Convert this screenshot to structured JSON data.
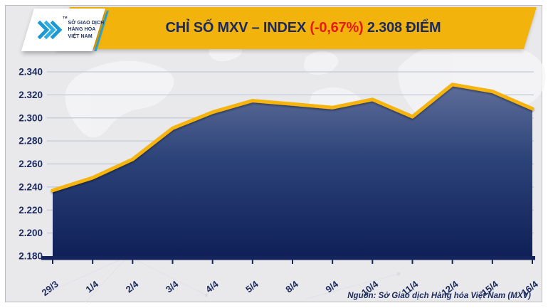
{
  "header": {
    "title_part1": "CHỈ SỐ MXV – INDEX ",
    "title_change": "(-0,67%)",
    "title_part2": " 2.308 ĐIỂM",
    "banner_color": "#f2b30d",
    "title_color": "#1b2a5e",
    "change_color": "#e8190d",
    "accent_cyan": "#2bace2"
  },
  "logo": {
    "org_line1": "SỞ GIAO DỊCH",
    "org_line2": "HÀNG HÓA",
    "org_line3": "VIỆT NAM",
    "trademark": "TM",
    "icon": "mxv-chevrons-icon"
  },
  "chart_data": {
    "type": "area",
    "title": "CHỈ SỐ MXV – INDEX (-0,67%) 2.308 ĐIỂM",
    "categories": [
      "29/3",
      "1/4",
      "2/4",
      "3/4",
      "4/4",
      "5/4",
      "8/4",
      "9/4",
      "10/4",
      "11/4",
      "12/4",
      "15/4",
      "16/4"
    ],
    "values": [
      2237,
      2248,
      2264,
      2291,
      2305,
      2315,
      2312,
      2309,
      2316,
      2301,
      2329,
      2323,
      2308
    ],
    "ylim": [
      2180,
      2340
    ],
    "ytick_step": 20,
    "ytick_labels": [
      "2.180",
      "2.200",
      "2.220",
      "2.240",
      "2.260",
      "2.280",
      "2.300",
      "2.320",
      "2.340"
    ],
    "xlabel": "",
    "ylabel": "",
    "grid": true,
    "legend": "none",
    "colors": {
      "line": "#f6b40a",
      "fill_top": "#62719c",
      "fill_mid": "#2c4379",
      "fill_bottom": "#0f2058",
      "axis": "#15245c",
      "grid": "#c3c8d7",
      "label": "#1b2a5e"
    }
  },
  "footer": {
    "source": "Nguồn: Sở Giao dịch Hàng hóa Việt Nam (MXV)"
  }
}
